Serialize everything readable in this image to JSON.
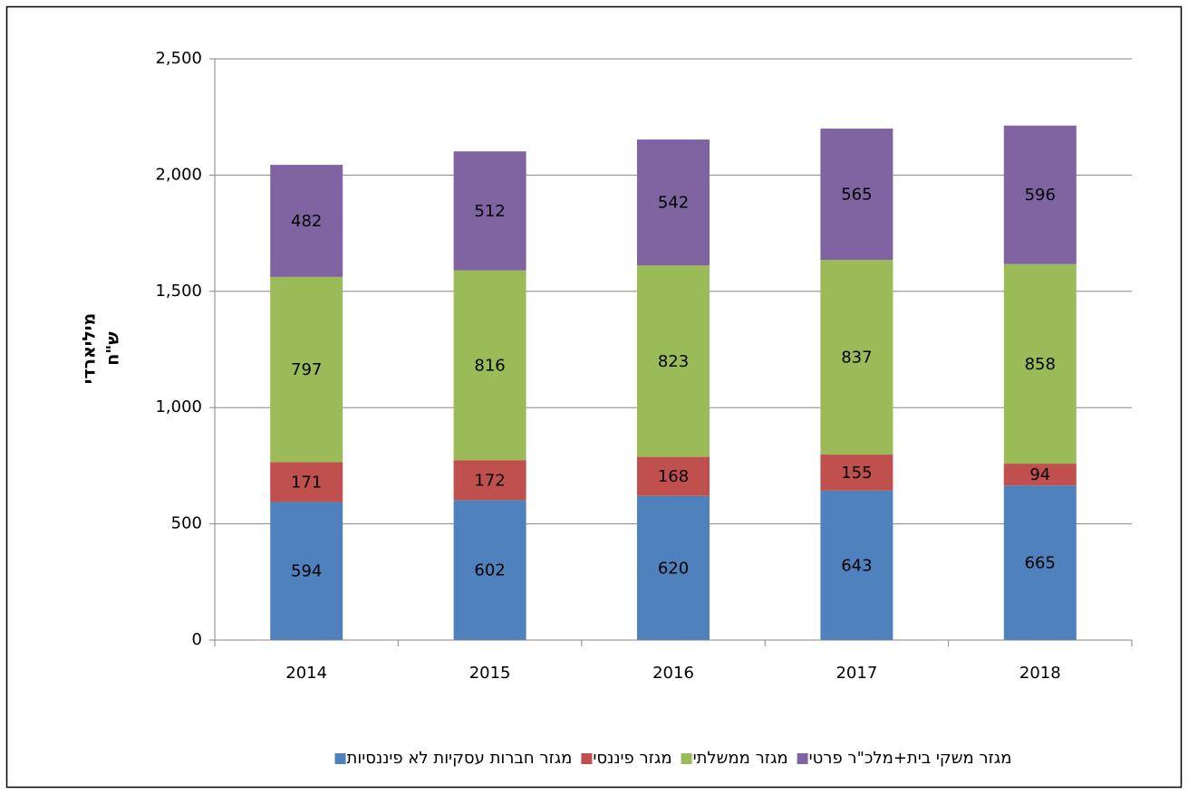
{
  "chart_data": {
    "type": "stacked_bar",
    "ylabel": [
      "מיליארדי",
      "ש\"ח"
    ],
    "categories": [
      "2014",
      "2015",
      "2016",
      "2017",
      "2018"
    ],
    "series": [
      {
        "name": "מגזר חברות עסקיות לא פיננסיות",
        "color": "#4f81bd",
        "values": [
          594,
          602,
          620,
          643,
          665
        ]
      },
      {
        "name": "מגזר פיננסי",
        "color": "#c0504d",
        "values": [
          171,
          172,
          168,
          155,
          94
        ]
      },
      {
        "name": "מגזר ממשלתי",
        "color": "#9bbb59",
        "values": [
          797,
          816,
          823,
          837,
          858
        ]
      },
      {
        "name": "מגזר משקי בית+מלכ\"ר פרטי",
        "color": "#8064a2",
        "values": [
          482,
          512,
          542,
          565,
          596
        ]
      }
    ],
    "ylim": [
      0,
      2500
    ],
    "yticks": [
      0,
      500,
      {
        "value": 1000,
        "label": "1,000"
      },
      {
        "value": 1500,
        "label": "1,500"
      },
      {
        "value": 2000,
        "label": "2,000"
      },
      {
        "value": 2500,
        "label": "2,500"
      }
    ],
    "grid": true,
    "legend": "bottom"
  }
}
